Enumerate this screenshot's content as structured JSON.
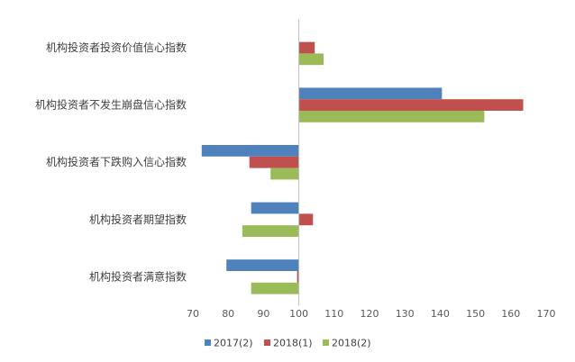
{
  "chart_data": {
    "type": "bar",
    "orientation": "horizontal",
    "categories": [
      "机构投资者投资价值信心指数",
      "机构投资者不发生崩盘信心指数",
      "机构投资者下跌购入信心指数",
      "机构投资者期望指数",
      "机构投资者满意指数"
    ],
    "series": [
      {
        "name": "2017(2)",
        "color": "#4f81bd",
        "values": [
          null,
          140.5,
          72.5,
          86.5,
          79.5
        ]
      },
      {
        "name": "2018(1)",
        "color": "#c0504d",
        "values": [
          104.5,
          163.5,
          86.0,
          104.0,
          99.5
        ]
      },
      {
        "name": "2018(2)",
        "color": "#9bbb59",
        "values": [
          107.0,
          152.5,
          92.0,
          84.0,
          86.5
        ]
      }
    ],
    "xlim": [
      70,
      170
    ],
    "xticks": [
      "70",
      "80",
      "90",
      "100",
      "110",
      "120",
      "130",
      "140",
      "150",
      "160",
      "170"
    ],
    "baseline": 100,
    "legend_position": "bottom",
    "grid": false
  }
}
